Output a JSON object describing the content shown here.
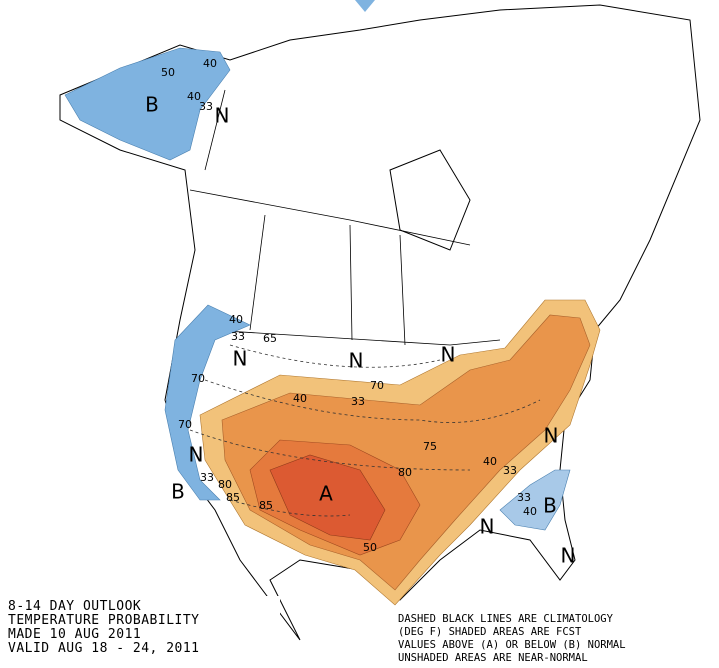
{
  "caption": [
    "8-14 DAY OUTLOOK",
    "TEMPERATURE PROBABILITY",
    "MADE  10 AUG 2011",
    "VALID  AUG 18 - 24, 2011"
  ],
  "notes": [
    "DASHED BLACK LINES ARE CLIMATOLOGY",
    "(DEG F) SHADED AREAS ARE FCST",
    "VALUES ABOVE (A) OR BELOW (B) NORMAL",
    "UNSHADED AREAS ARE NEAR-NORMAL"
  ],
  "regions": [
    "B",
    "N",
    "N",
    "N",
    "N",
    "N",
    "A",
    "B",
    "N",
    "B",
    "N",
    "N"
  ],
  "contours": [
    40,
    33,
    50,
    40,
    40,
    33,
    40,
    33,
    40,
    33,
    33,
    40,
    50,
    75,
    80,
    85,
    85,
    80,
    33,
    65,
    70,
    70,
    70
  ]
}
